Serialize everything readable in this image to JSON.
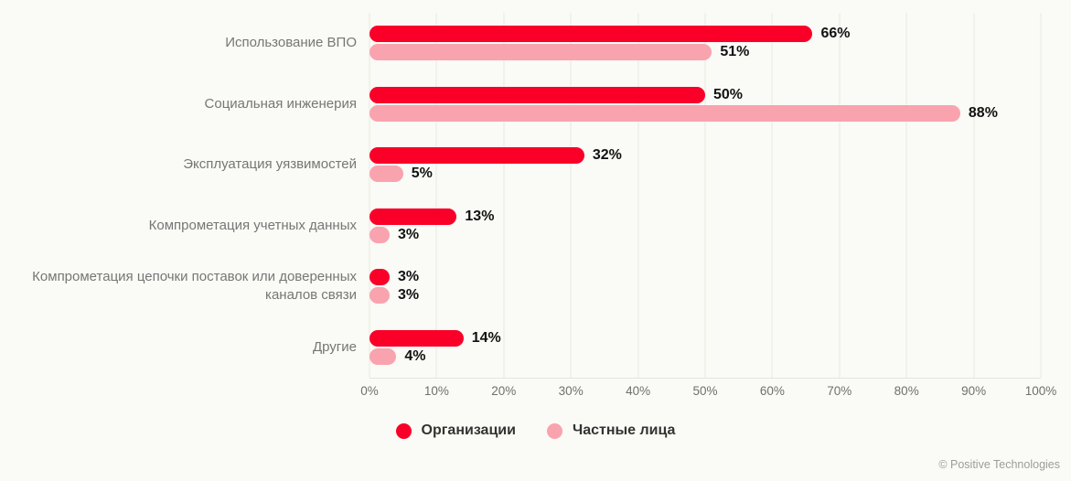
{
  "chart_data": {
    "type": "bar",
    "orientation": "horizontal",
    "categories": [
      "Использование ВПО",
      "Социальная инженерия",
      "Эксплуатация уязвимостей",
      "Компрометация учетных данных",
      "Компрометация цепочки поставок или доверенных каналов связи",
      "Другие"
    ],
    "series": [
      {
        "name": "Организации",
        "color": "#fa0028",
        "values": [
          66,
          50,
          32,
          13,
          3,
          14
        ]
      },
      {
        "name": "Частные лица",
        "color": "#f9a3af",
        "values": [
          51,
          88,
          5,
          3,
          3,
          4
        ]
      }
    ],
    "value_suffix": "%",
    "xlim": [
      0,
      100
    ],
    "x_ticks": [
      "0%",
      "10%",
      "20%",
      "30%",
      "40%",
      "50%",
      "60%",
      "70%",
      "80%",
      "90%",
      "100%"
    ],
    "grid": "vertical",
    "legend_position": "bottom-center",
    "title": "",
    "xlabel": "",
    "ylabel": ""
  },
  "footer": {
    "copyright": "© Positive Technologies"
  },
  "colors": {
    "background": "#fafaf6",
    "gridline": "#e9e9e4",
    "category_label": "#767676",
    "value_label": "#121212",
    "tick_label": "#6f6f6f",
    "legend_label": "#333333",
    "copyright": "#9c9c9c"
  }
}
